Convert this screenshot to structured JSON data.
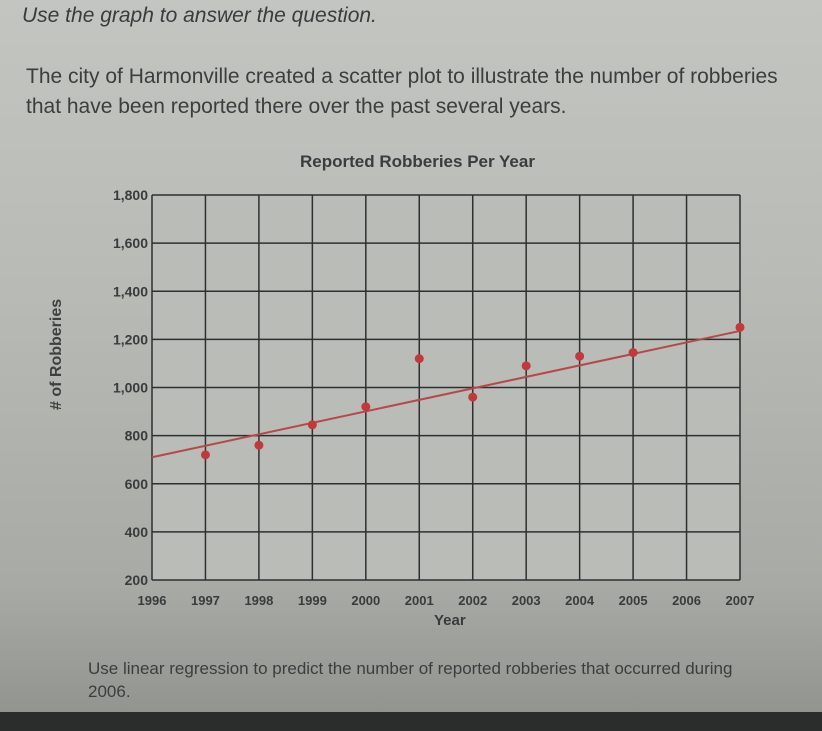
{
  "page": {
    "instruction": "Use the graph to answer the question.",
    "prompt": "The city of Harmonville created a scatter plot to illustrate the number of robberies that have been reported there over the past several years.",
    "question": "Use linear regression to predict the number of reported robberies that occurred during 2006."
  },
  "colors": {
    "grid": "#2e3030",
    "point": "#c0393d",
    "trendline": "#b8474a",
    "plot_bg": "#babcb8",
    "text": "#3a3c3c"
  },
  "chart_data": {
    "type": "scatter",
    "title": "Reported Robberies Per Year",
    "xlabel": "Year",
    "ylabel": "# of Robberies",
    "x_ticks": [
      "1996",
      "1997",
      "1998",
      "1999",
      "2000",
      "2001",
      "2002",
      "2003",
      "2004",
      "2005",
      "2006",
      "2007"
    ],
    "y_ticks": [
      "200",
      "400",
      "600",
      "800",
      "1,000",
      "1,200",
      "1,400",
      "1,600",
      "1,800"
    ],
    "xlim": [
      1996,
      2007
    ],
    "ylim": [
      200,
      1800
    ],
    "grid": true,
    "legend": null,
    "series": [
      {
        "name": "Reported robberies",
        "points": [
          {
            "x": 1997,
            "y": 720
          },
          {
            "x": 1998,
            "y": 760
          },
          {
            "x": 1999,
            "y": 845
          },
          {
            "x": 2000,
            "y": 920
          },
          {
            "x": 2001,
            "y": 1120
          },
          {
            "x": 2002,
            "y": 960
          },
          {
            "x": 2003,
            "y": 1090
          },
          {
            "x": 2004,
            "y": 1130
          },
          {
            "x": 2005,
            "y": 1145
          },
          {
            "x": 2007,
            "y": 1250
          }
        ]
      }
    ],
    "trendline": {
      "type": "linear",
      "start": {
        "x": 1996,
        "y": 710
      },
      "end": {
        "x": 2007,
        "y": 1235
      }
    }
  }
}
